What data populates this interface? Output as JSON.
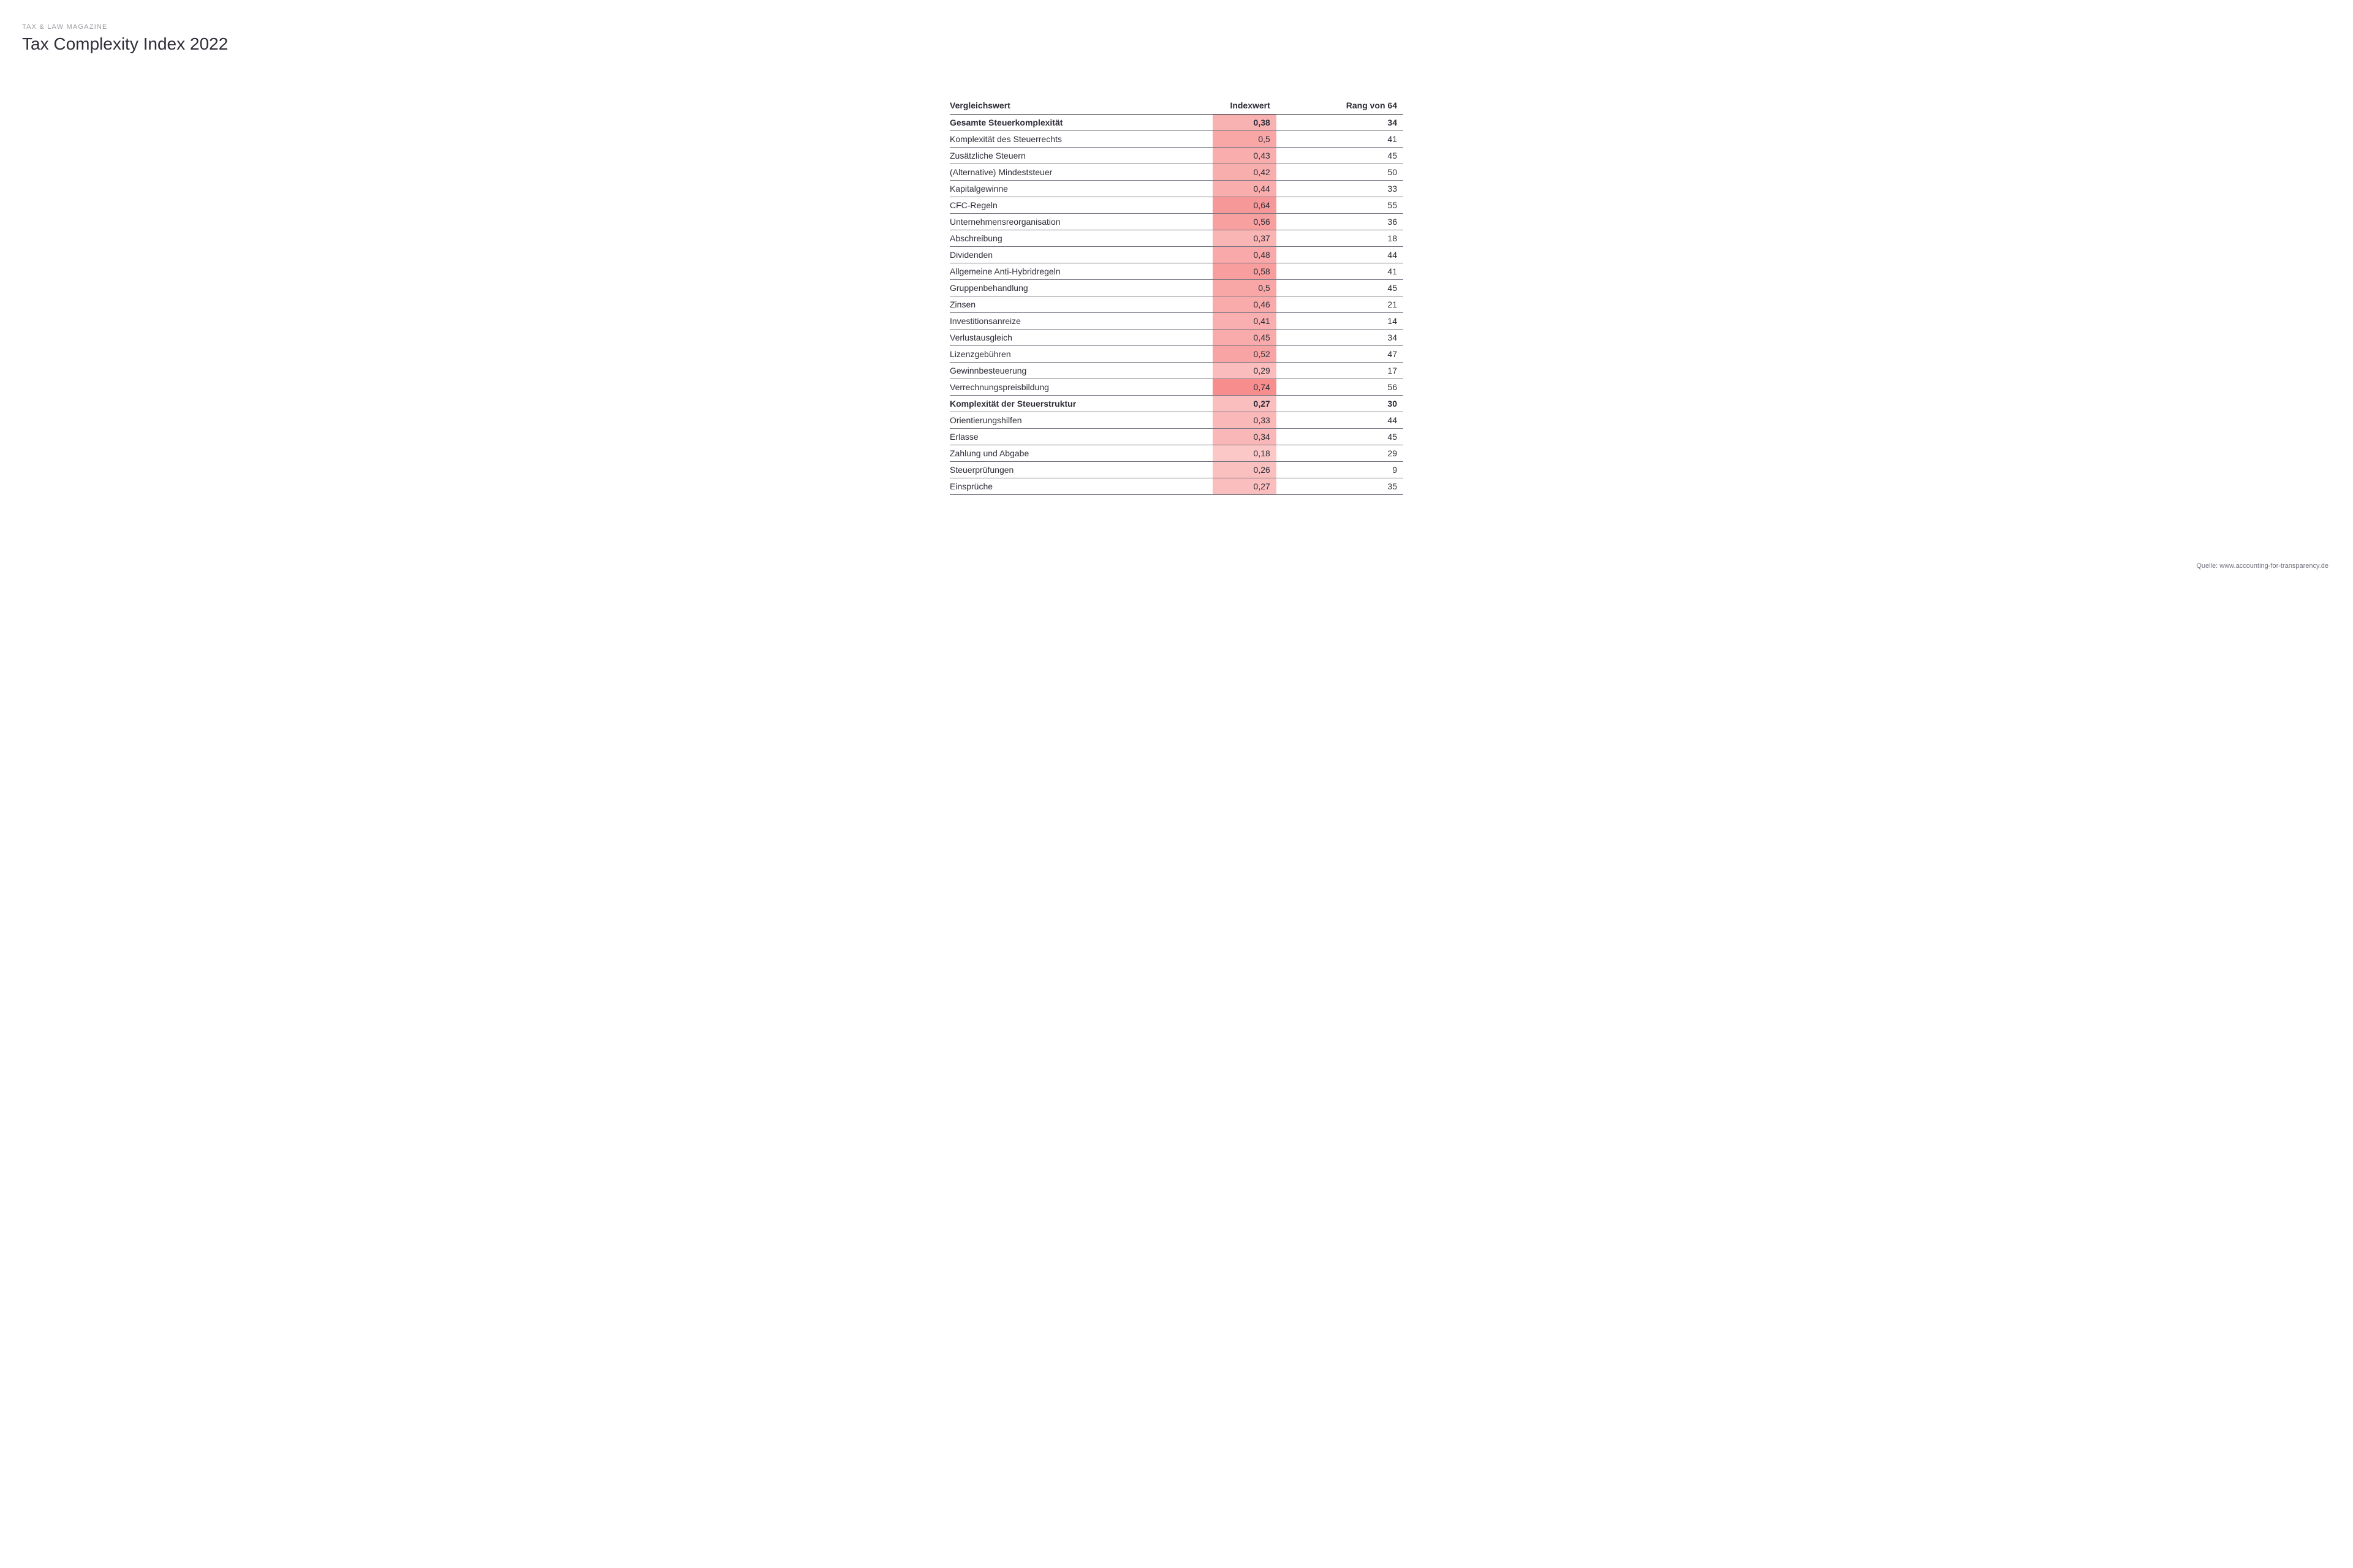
{
  "eyebrow": "TAX & LAW MAGAZINE",
  "title": "Tax Complexity Index 2022",
  "source": "Quelle: www.accounting-for-transparency.de",
  "colors": {
    "background": "#ffffff",
    "text": "#2e2e38",
    "eyebrow": "#999ba0",
    "rule": "#747480",
    "source": "#747480",
    "highlight_base_rgb": "244,107,107",
    "highlight_min_alpha": 0.25,
    "highlight_max_alpha": 0.95
  },
  "table": {
    "columns": [
      "Vergleichswert",
      "Indexwert",
      "Rang von 64"
    ],
    "index_min": 0.0,
    "index_max": 1.0,
    "index_cell_width_pct": 14,
    "rows": [
      {
        "label": "Gesamte Steuerkomplexität",
        "index": "0,38",
        "index_num": 0.38,
        "rank": "34",
        "bold": true
      },
      {
        "label": "Komplexität des Steuerrechts",
        "index": "0,5",
        "index_num": 0.5,
        "rank": "41",
        "bold": false
      },
      {
        "label": "Zusätzliche Steuern",
        "index": "0,43",
        "index_num": 0.43,
        "rank": "45",
        "bold": false
      },
      {
        "label": "(Alternative) Mindeststeuer",
        "index": "0,42",
        "index_num": 0.42,
        "rank": "50",
        "bold": false
      },
      {
        "label": "Kapitalgewinne",
        "index": "0,44",
        "index_num": 0.44,
        "rank": "33",
        "bold": false
      },
      {
        "label": "CFC-Regeln",
        "index": "0,64",
        "index_num": 0.64,
        "rank": "55",
        "bold": false
      },
      {
        "label": "Unternehmensreorganisation",
        "index": "0,56",
        "index_num": 0.56,
        "rank": "36",
        "bold": false
      },
      {
        "label": "Abschreibung",
        "index": "0,37",
        "index_num": 0.37,
        "rank": "18",
        "bold": false
      },
      {
        "label": "Dividenden",
        "index": "0,48",
        "index_num": 0.48,
        "rank": "44",
        "bold": false
      },
      {
        "label": "Allgemeine Anti-Hybridregeln",
        "index": "0,58",
        "index_num": 0.58,
        "rank": "41",
        "bold": false
      },
      {
        "label": "Gruppenbehandlung",
        "index": "0,5",
        "index_num": 0.5,
        "rank": "45",
        "bold": false
      },
      {
        "label": "Zinsen",
        "index": "0,46",
        "index_num": 0.46,
        "rank": "21",
        "bold": false
      },
      {
        "label": "Investitionsanreize",
        "index": "0,41",
        "index_num": 0.41,
        "rank": "14",
        "bold": false
      },
      {
        "label": "Verlustausgleich",
        "index": "0,45",
        "index_num": 0.45,
        "rank": "34",
        "bold": false
      },
      {
        "label": "Lizenzgebühren",
        "index": "0,52",
        "index_num": 0.52,
        "rank": "47",
        "bold": false
      },
      {
        "label": "Gewinnbesteuerung",
        "index": "0,29",
        "index_num": 0.29,
        "rank": "17",
        "bold": false
      },
      {
        "label": "Verrechnungspreisbildung",
        "index": "0,74",
        "index_num": 0.74,
        "rank": "56",
        "bold": false
      },
      {
        "label": "Komplexität der Steuerstruktur",
        "index": "0,27",
        "index_num": 0.27,
        "rank": "30",
        "bold": true
      },
      {
        "label": "Orientierungshilfen",
        "index": "0,33",
        "index_num": 0.33,
        "rank": "44",
        "bold": false
      },
      {
        "label": "Erlasse",
        "index": "0,34",
        "index_num": 0.34,
        "rank": "45",
        "bold": false
      },
      {
        "label": "Zahlung und Abgabe",
        "index": "0,18",
        "index_num": 0.18,
        "rank": "29",
        "bold": false
      },
      {
        "label": "Steuerprüfungen",
        "index": "0,26",
        "index_num": 0.26,
        "rank": "9",
        "bold": false
      },
      {
        "label": "Einsprüche",
        "index": "0,27",
        "index_num": 0.27,
        "rank": "35",
        "bold": false
      }
    ]
  }
}
